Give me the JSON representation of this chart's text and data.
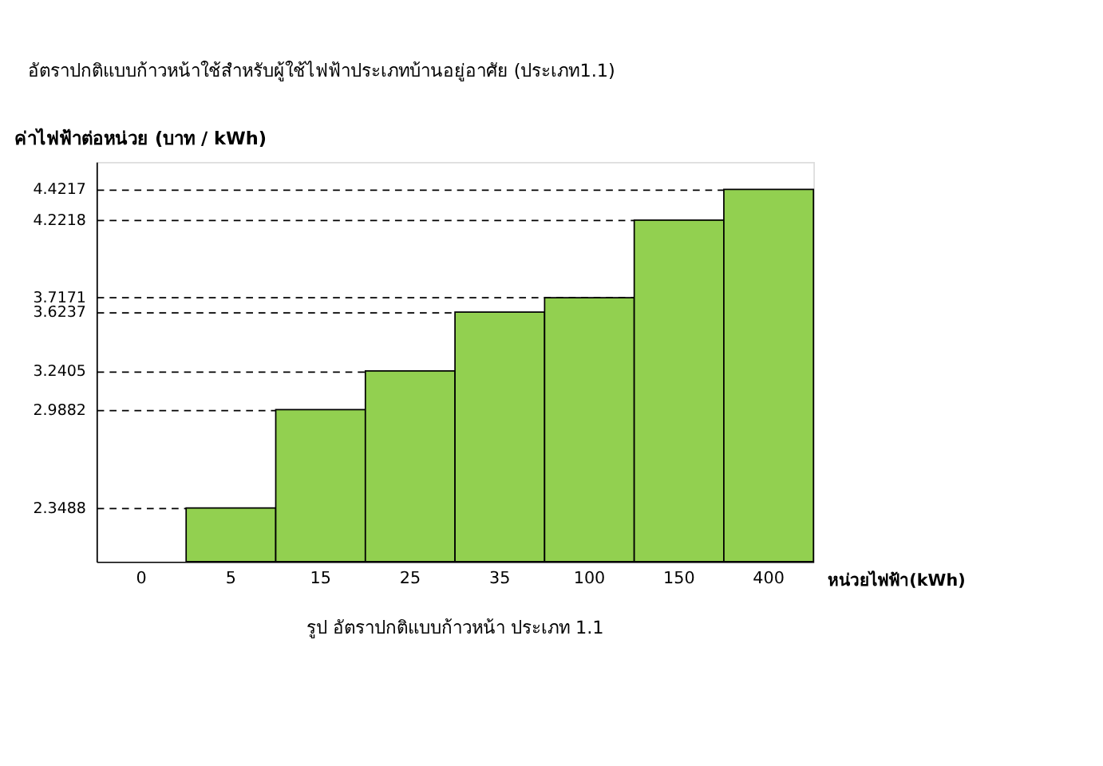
{
  "chart_data": {
    "type": "bar",
    "title": "อัตราปกติแบบก้าวหน้าใช้สำหรับผู้ใช้ไฟฟ้าประเภทบ้านอยู่อาศัย (ประเภท1.1)",
    "ylabel": "ค่าไฟฟ้าต่อหน่วย (บาท / kWh)",
    "xlabel": "หน่วยไฟฟ้า(kWh)",
    "annotations": [
      "รูป อัตราปกติแบบก้าวหน้า ประเภท 1.1"
    ],
    "categories": [
      "0",
      "5",
      "15",
      "25",
      "35",
      "100",
      "150",
      "400"
    ],
    "values": [
      null,
      2.3488,
      2.9882,
      3.2405,
      3.6237,
      3.7171,
      4.2218,
      4.4217
    ],
    "color": "#92d050",
    "ylim": [
      2.0,
      4.6
    ],
    "yticks": [
      2.3488,
      2.9882,
      3.2405,
      3.6237,
      3.7171,
      4.2218,
      4.4217
    ],
    "grid": "y"
  }
}
